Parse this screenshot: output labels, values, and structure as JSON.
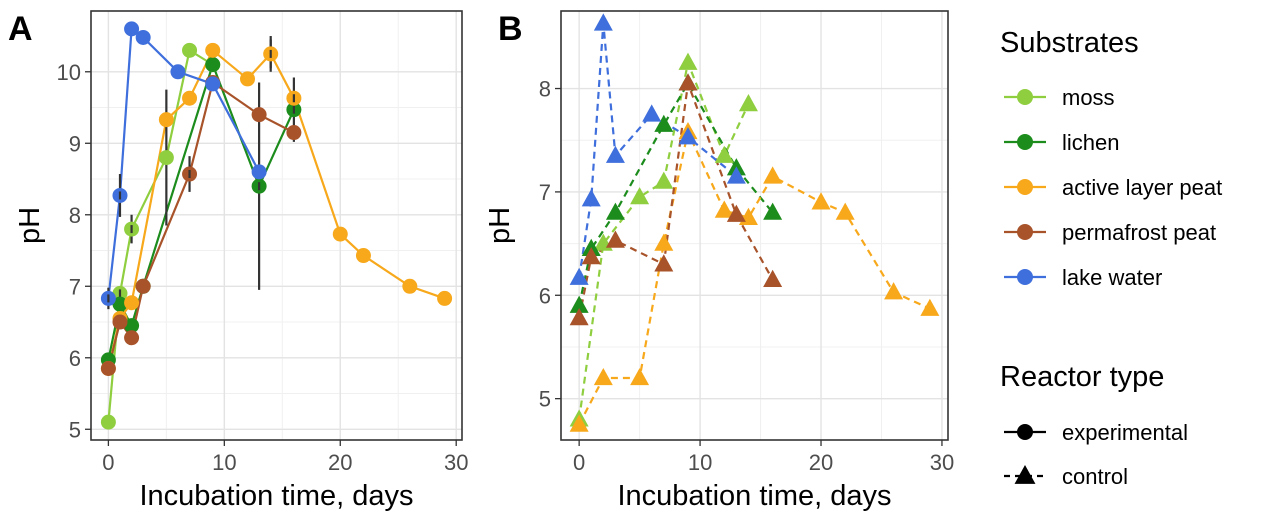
{
  "chart_data": [
    {
      "panel": "A",
      "type": "line",
      "marker": "circle",
      "line_style": "solid",
      "xlabel": "Incubation time, days",
      "ylabel": "pH",
      "xlim": [
        -1.5,
        30.5
      ],
      "ylim": [
        4.85,
        10.85
      ],
      "xticks": [
        0,
        10,
        20,
        30
      ],
      "yticks": [
        5,
        6,
        7,
        8,
        9,
        10
      ],
      "grid": true,
      "series": [
        {
          "name": "moss",
          "color": "#8fce3f",
          "points": [
            [
              0,
              5.1,
              0
            ],
            [
              1,
              6.9,
              0.05
            ],
            [
              2,
              7.8,
              0.2
            ],
            [
              5,
              8.8,
              0
            ],
            [
              7,
              10.3,
              0
            ],
            [
              9,
              10.1,
              0
            ]
          ]
        },
        {
          "name": "lichen",
          "color": "#1c8c1c",
          "points": [
            [
              0,
              5.97,
              0
            ],
            [
              1,
              6.75,
              0
            ],
            [
              2,
              6.45,
              0
            ],
            [
              3,
              7.0,
              0
            ],
            [
              9,
              10.1,
              0
            ],
            [
              13,
              8.4,
              1.45
            ],
            [
              16,
              9.47,
              0.45
            ]
          ]
        },
        {
          "name": "active layer peat",
          "color": "#f7a81b",
          "points": [
            [
              0,
              5.85,
              0
            ],
            [
              1,
              6.55,
              0
            ],
            [
              2,
              6.77,
              0
            ],
            [
              5,
              9.33,
              0
            ],
            [
              7,
              9.63,
              0
            ],
            [
              9,
              10.3,
              0
            ],
            [
              12,
              9.9,
              0
            ],
            [
              14,
              10.25,
              0.2
            ],
            [
              16,
              9.63,
              0.1
            ],
            [
              20,
              7.73,
              0
            ],
            [
              22,
              7.43,
              0
            ],
            [
              26,
              7.0,
              0
            ],
            [
              29,
              6.83,
              0
            ]
          ]
        },
        {
          "name": "permafrost peat",
          "color": "#a8532a",
          "points": [
            [
              0,
              5.85,
              0
            ],
            [
              1,
              6.5,
              0
            ],
            [
              2,
              6.28,
              0
            ],
            [
              3,
              7.0,
              0
            ],
            [
              7,
              8.57,
              0.25
            ],
            [
              9,
              9.85,
              0
            ],
            [
              13,
              9.4,
              0
            ],
            [
              16,
              9.15,
              0
            ]
          ]
        },
        {
          "name": "lake water",
          "color": "#3f6fdc",
          "points": [
            [
              0,
              6.83,
              0.15
            ],
            [
              1,
              8.27,
              0.3
            ],
            [
              2,
              10.6,
              0
            ],
            [
              3,
              10.48,
              0
            ],
            [
              6,
              10.0,
              0
            ],
            [
              9,
              9.83,
              0
            ],
            [
              13,
              8.6,
              0
            ]
          ]
        }
      ],
      "error_bars": [
        [
          5,
          8.8,
          0.95
        ],
        [
          12,
          10.17,
          0
        ],
        [
          14,
          10.25,
          0.25
        ]
      ]
    },
    {
      "panel": "B",
      "type": "line",
      "marker": "triangle",
      "line_style": "dashed",
      "xlabel": "Incubation time, days",
      "ylabel": "pH",
      "xlim": [
        -1.5,
        30.5
      ],
      "ylim": [
        4.6,
        8.75
      ],
      "xticks": [
        0,
        10,
        20,
        30
      ],
      "yticks": [
        5,
        6,
        7,
        8
      ],
      "grid": true,
      "series": [
        {
          "name": "moss",
          "color": "#8fce3f",
          "points": [
            [
              0,
              4.8
            ],
            [
              2,
              6.5
            ],
            [
              5,
              6.95
            ],
            [
              7,
              7.1
            ],
            [
              9,
              8.25
            ],
            [
              12,
              7.35
            ],
            [
              14,
              7.85
            ]
          ]
        },
        {
          "name": "lichen",
          "color": "#1c8c1c",
          "points": [
            [
              0,
              5.9
            ],
            [
              1,
              6.45
            ],
            [
              3,
              6.8
            ],
            [
              7,
              7.65
            ],
            [
              9,
              8.05
            ],
            [
              13,
              7.23
            ],
            [
              16,
              6.8
            ]
          ]
        },
        {
          "name": "active layer peat",
          "color": "#f7a81b",
          "points": [
            [
              0,
              4.75
            ],
            [
              2,
              5.2
            ],
            [
              5,
              5.2
            ],
            [
              7,
              6.5
            ],
            [
              9,
              7.58
            ],
            [
              12,
              6.82
            ],
            [
              14,
              6.75
            ],
            [
              16,
              7.15
            ],
            [
              20,
              6.9
            ],
            [
              22,
              6.8
            ],
            [
              26,
              6.03
            ],
            [
              29,
              5.87
            ]
          ]
        },
        {
          "name": "permafrost peat",
          "color": "#a8532a",
          "points": [
            [
              0,
              5.78
            ],
            [
              1,
              6.37
            ],
            [
              3,
              6.53
            ],
            [
              7,
              6.3
            ],
            [
              9,
              8.05
            ],
            [
              13,
              6.78
            ],
            [
              16,
              6.15
            ]
          ]
        },
        {
          "name": "lake water",
          "color": "#3f6fdc",
          "points": [
            [
              0,
              6.17
            ],
            [
              1,
              6.93
            ],
            [
              2,
              8.63
            ],
            [
              3,
              7.35
            ],
            [
              6,
              7.75
            ],
            [
              9,
              7.53
            ],
            [
              13,
              7.15
            ]
          ]
        }
      ]
    }
  ],
  "panel_labels": [
    "A",
    "B"
  ],
  "legend": {
    "substrates_title": "Substrates",
    "substrates": [
      {
        "label": "moss",
        "color": "#8fce3f"
      },
      {
        "label": "lichen",
        "color": "#1c8c1c"
      },
      {
        "label": "active layer peat",
        "color": "#f7a81b"
      },
      {
        "label": "permafrost peat",
        "color": "#a8532a"
      },
      {
        "label": "lake water",
        "color": "#3f6fdc"
      }
    ],
    "reactor_title": "Reactor type",
    "reactor": [
      {
        "label": "experimental",
        "marker": "circle"
      },
      {
        "label": "control",
        "marker": "triangle"
      }
    ]
  }
}
